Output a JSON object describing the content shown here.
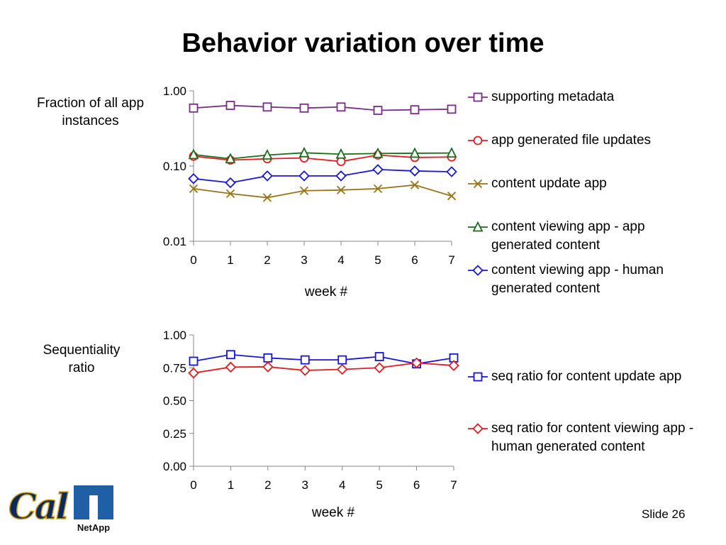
{
  "slide": {
    "title": "Behavior variation over time",
    "slide_number": "Slide 26",
    "logo_cal": "Cal",
    "logo_netapp": "NetApp"
  },
  "chart_data": [
    {
      "type": "line",
      "title": "",
      "ylabel": "Fraction of all app instances",
      "xlabel": "week #",
      "y_scale": "log",
      "ylim": [
        0.01,
        1.0
      ],
      "yticks": [
        "0.01",
        "0.10",
        "1.00"
      ],
      "x": [
        0,
        1,
        2,
        3,
        4,
        5,
        6,
        7
      ],
      "grid": false,
      "legend_position": "right",
      "series": [
        {
          "name": "supporting metadata",
          "color": "#7b2a8a",
          "marker": "square",
          "values": [
            0.59,
            0.64,
            0.61,
            0.59,
            0.61,
            0.55,
            0.56,
            0.57
          ]
        },
        {
          "name": "app generated file updates",
          "color": "#e8191d",
          "marker": "circle",
          "values": [
            0.135,
            0.12,
            0.125,
            0.128,
            0.115,
            0.14,
            0.13,
            0.132
          ]
        },
        {
          "name": "content update app",
          "color": "#9a7417",
          "marker": "x",
          "values": [
            0.05,
            0.043,
            0.038,
            0.047,
            0.048,
            0.05,
            0.056,
            0.04
          ]
        },
        {
          "name": "content viewing app - app generated content",
          "color": "#1a6e1a",
          "marker": "triangle",
          "values": [
            0.142,
            0.125,
            0.14,
            0.15,
            0.144,
            0.147,
            0.148,
            0.149
          ]
        },
        {
          "name": "content viewing app - human generated content",
          "color": "#1515e0",
          "marker": "diamond",
          "values": [
            0.068,
            0.06,
            0.074,
            0.074,
            0.074,
            0.09,
            0.086,
            0.084
          ]
        }
      ]
    },
    {
      "type": "line",
      "title": "",
      "ylabel": "Sequentiality ratio",
      "xlabel": "week #",
      "y_scale": "linear",
      "ylim": [
        0.0,
        1.0
      ],
      "yticks": [
        "0.00",
        "0.25",
        "0.50",
        "0.75",
        "1.00"
      ],
      "x": [
        0,
        1,
        2,
        3,
        4,
        5,
        6,
        7
      ],
      "grid": false,
      "legend_position": "right",
      "series": [
        {
          "name": "seq ratio for content update app",
          "color": "#1515e0",
          "marker": "square",
          "values": [
            0.8,
            0.85,
            0.825,
            0.81,
            0.81,
            0.835,
            0.78,
            0.825
          ]
        },
        {
          "name": "seq ratio for content viewing app - human generated content",
          "color": "#e8191d",
          "marker": "diamond",
          "values": [
            0.71,
            0.755,
            0.757,
            0.73,
            0.738,
            0.75,
            0.787,
            0.767
          ]
        }
      ]
    }
  ]
}
